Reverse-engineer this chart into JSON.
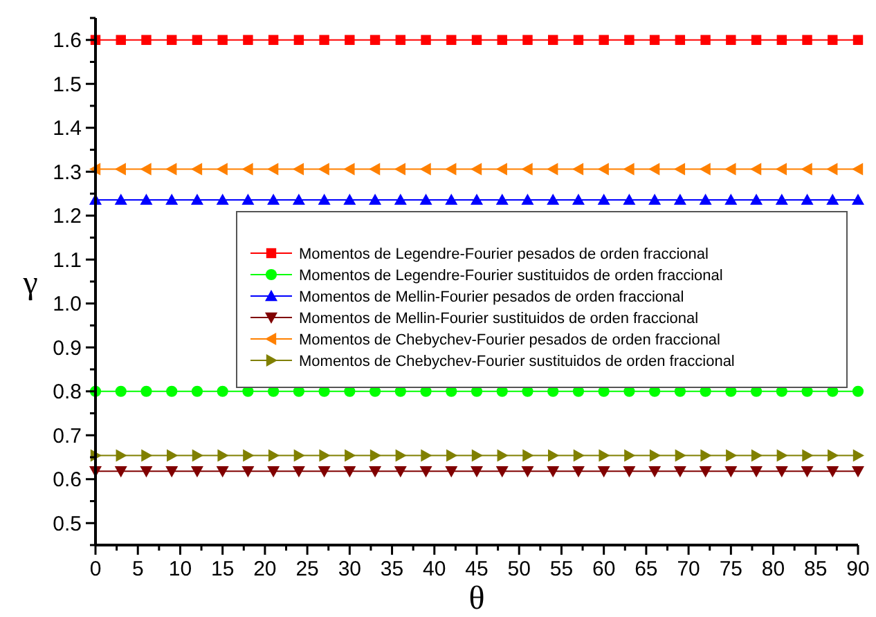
{
  "chart_data": {
    "type": "line",
    "xlabel": "θ",
    "ylabel": "γ",
    "x": [
      0,
      3,
      6,
      9,
      12,
      15,
      18,
      21,
      24,
      27,
      30,
      33,
      36,
      39,
      42,
      45,
      48,
      51,
      54,
      57,
      60,
      63,
      66,
      69,
      72,
      75,
      78,
      81,
      84,
      87,
      90
    ],
    "series": [
      {
        "name": "Momentos de Legendre-Fourier pesados de orden fraccional",
        "color": "#ff0000",
        "marker": "square",
        "values": [
          1.6,
          1.6,
          1.6,
          1.6,
          1.6,
          1.6,
          1.6,
          1.6,
          1.6,
          1.6,
          1.6,
          1.6,
          1.6,
          1.6,
          1.6,
          1.6,
          1.6,
          1.6,
          1.6,
          1.6,
          1.6,
          1.6,
          1.6,
          1.6,
          1.6,
          1.6,
          1.6,
          1.6,
          1.6,
          1.6,
          1.6
        ]
      },
      {
        "name": "Momentos de Legendre-Fourier sustituidos de orden fraccional",
        "color": "#00ff00",
        "marker": "circle",
        "values": [
          0.8,
          0.8,
          0.8,
          0.8,
          0.8,
          0.8,
          0.8,
          0.8,
          0.8,
          0.8,
          0.8,
          0.8,
          0.8,
          0.8,
          0.8,
          0.8,
          0.8,
          0.8,
          0.8,
          0.8,
          0.8,
          0.8,
          0.8,
          0.8,
          0.8,
          0.8,
          0.8,
          0.8,
          0.8,
          0.8,
          0.8
        ]
      },
      {
        "name": "Momentos de Mellin-Fourier pesados de orden fraccional",
        "color": "#0000ff",
        "marker": "triangle",
        "values": [
          1.236,
          1.236,
          1.236,
          1.236,
          1.236,
          1.236,
          1.236,
          1.236,
          1.236,
          1.236,
          1.236,
          1.236,
          1.236,
          1.236,
          1.236,
          1.236,
          1.236,
          1.236,
          1.236,
          1.236,
          1.236,
          1.236,
          1.236,
          1.236,
          1.236,
          1.236,
          1.236,
          1.236,
          1.236,
          1.236,
          1.236
        ]
      },
      {
        "name": "Momentos de Mellin-Fourier sustituidos de orden fraccional",
        "color": "#800000",
        "marker": "triangle-down",
        "values": [
          0.618,
          0.618,
          0.618,
          0.618,
          0.618,
          0.618,
          0.618,
          0.618,
          0.618,
          0.618,
          0.618,
          0.618,
          0.618,
          0.618,
          0.618,
          0.618,
          0.618,
          0.618,
          0.618,
          0.618,
          0.618,
          0.618,
          0.618,
          0.618,
          0.618,
          0.618,
          0.618,
          0.618,
          0.618,
          0.618,
          0.618
        ]
      },
      {
        "name": "Momentos de Chebychev-Fourier pesados de orden fraccional",
        "color": "#ff8000",
        "marker": "triangle-left",
        "values": [
          1.306,
          1.306,
          1.306,
          1.306,
          1.306,
          1.306,
          1.306,
          1.306,
          1.306,
          1.306,
          1.306,
          1.306,
          1.306,
          1.306,
          1.306,
          1.306,
          1.306,
          1.306,
          1.306,
          1.306,
          1.306,
          1.306,
          1.306,
          1.306,
          1.306,
          1.306,
          1.306,
          1.306,
          1.306,
          1.306,
          1.306
        ]
      },
      {
        "name": "Momentos de Chebychev-Fourier sustituidos de orden fraccional",
        "color": "#808000",
        "marker": "triangle-right",
        "values": [
          0.654,
          0.654,
          0.654,
          0.654,
          0.654,
          0.654,
          0.654,
          0.654,
          0.654,
          0.654,
          0.654,
          0.654,
          0.654,
          0.654,
          0.654,
          0.654,
          0.654,
          0.654,
          0.654,
          0.654,
          0.654,
          0.654,
          0.654,
          0.654,
          0.654,
          0.654,
          0.654,
          0.654,
          0.654,
          0.654,
          0.654
        ]
      }
    ],
    "xlim": [
      0,
      90
    ],
    "xticks": [
      0,
      {
        "value": 2.5,
        "label": null
      },
      5,
      {
        "value": 7.5,
        "label": null
      },
      10,
      {
        "value": 12.5,
        "label": null
      },
      15,
      {
        "value": 17.5,
        "label": null
      },
      20,
      {
        "value": 22.5,
        "label": null
      },
      25,
      {
        "value": 27.5,
        "label": null
      },
      30,
      {
        "value": 32.5,
        "label": null
      },
      35,
      {
        "value": 37.5,
        "label": null
      },
      40,
      {
        "value": 42.5,
        "label": null
      },
      45,
      {
        "value": 47.5,
        "label": null
      },
      50,
      {
        "value": 52.5,
        "label": null
      },
      55,
      {
        "value": 57.5,
        "label": null
      },
      60,
      {
        "value": 62.5,
        "label": null
      },
      65,
      {
        "value": 67.5,
        "label": null
      },
      70,
      {
        "value": 72.5,
        "label": null
      },
      75,
      {
        "value": 77.5,
        "label": null
      },
      80,
      {
        "value": 82.5,
        "label": null
      },
      85,
      {
        "value": 87.5,
        "label": null
      },
      90
    ],
    "ylim": [
      0.45,
      1.65
    ],
    "yticks": [
      {
        "value": 0.45,
        "label": null
      },
      0.5,
      {
        "value": 0.55,
        "label": null
      },
      0.6,
      {
        "value": 0.65,
        "label": null
      },
      0.7,
      {
        "value": 0.75,
        "label": null
      },
      0.8,
      {
        "value": 0.85,
        "label": null
      },
      0.9,
      {
        "value": 0.95,
        "label": null
      },
      {
        "value": 1.0,
        "label": "1.0"
      },
      {
        "value": 1.05,
        "label": null
      },
      1.1,
      {
        "value": 1.15,
        "label": null
      },
      1.2,
      {
        "value": 1.25,
        "label": null
      },
      1.3,
      {
        "value": 1.35,
        "label": null
      },
      1.4,
      {
        "value": 1.45,
        "label": null
      },
      1.5,
      {
        "value": 1.55,
        "label": null
      },
      1.6,
      {
        "value": 1.65,
        "label": null
      }
    ],
    "legend": "right",
    "grid": false,
    "line_style": "solid"
  }
}
